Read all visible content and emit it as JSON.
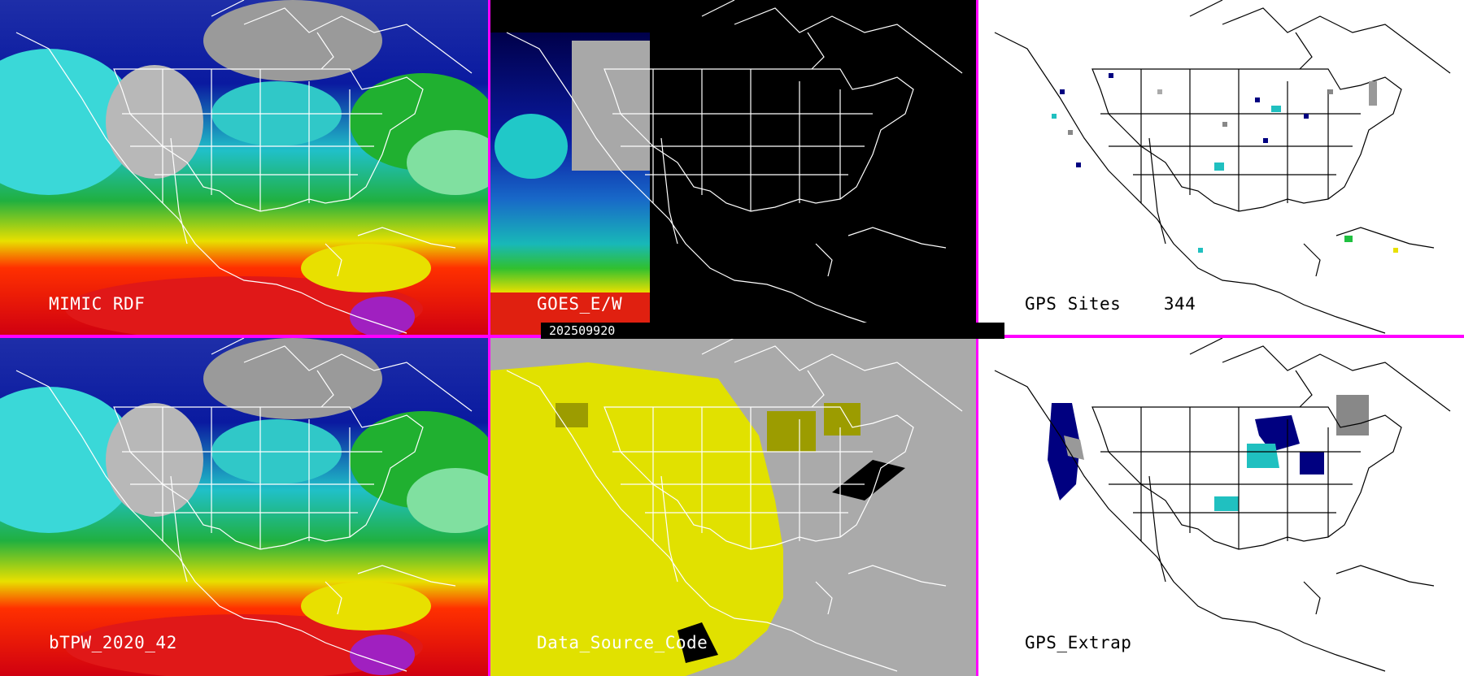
{
  "panels": {
    "p1": {
      "label": "MIMIC RDF"
    },
    "p2": {
      "label": "GOES_E/W"
    },
    "p3": {
      "label": "GPS Sites    344"
    },
    "p4": {
      "label": "bTPW_2020_42"
    },
    "p5": {
      "label": "Data_Source_Code"
    },
    "p6": {
      "label": "GPS_Extrap"
    }
  },
  "timestamp": "202509920",
  "colors": {
    "separator": "#ff00ff",
    "panel_background_black": "#000000",
    "panel_background_white": "#ffffff",
    "panel_background_gray": "#aaaaaa",
    "yellow_source": "#e1e100",
    "olive_source": "#9c9c00"
  }
}
